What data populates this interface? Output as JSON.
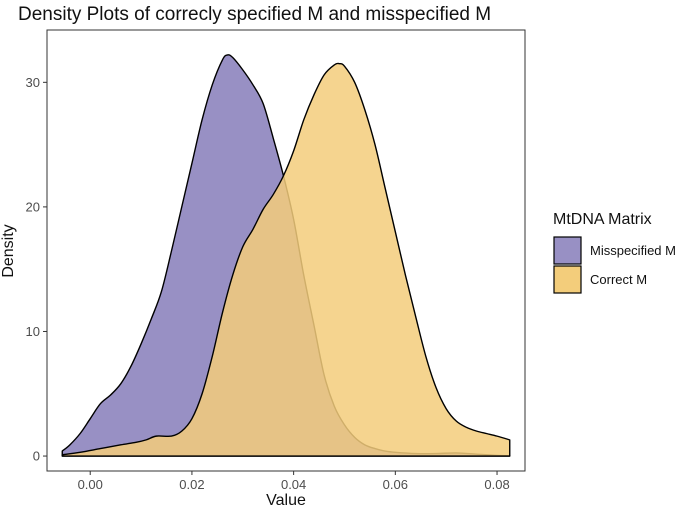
{
  "chart_data": {
    "type": "area",
    "title": "Density Plots of correcly specified M and misspecified M",
    "xlabel": "Value",
    "ylabel": "Density",
    "xlim": [
      -0.0085,
      0.0855
    ],
    "ylim": [
      -1.2,
      34.2
    ],
    "x_ticks": [
      0.0,
      0.02,
      0.04,
      0.06,
      0.08
    ],
    "x_tick_labels": [
      "0.00",
      "0.02",
      "0.04",
      "0.06",
      "0.08"
    ],
    "y_ticks": [
      0,
      10,
      20,
      30
    ],
    "y_tick_labels": [
      "0",
      "10",
      "20",
      "30"
    ],
    "grid": false,
    "legend": {
      "title": "MtDNA Matrix",
      "placement": "right",
      "entries": [
        "Misspecified M",
        "Correct M"
      ]
    },
    "series": [
      {
        "name": "Misspecified M",
        "color": "#9890c4",
        "points": [
          [
            -0.0055,
            0.4
          ],
          [
            -0.004,
            0.9
          ],
          [
            -0.002,
            1.8
          ],
          [
            0.0,
            3.0
          ],
          [
            0.002,
            4.2
          ],
          [
            0.004,
            4.9
          ],
          [
            0.006,
            5.8
          ],
          [
            0.008,
            7.2
          ],
          [
            0.01,
            9.0
          ],
          [
            0.012,
            11.0
          ],
          [
            0.014,
            13.2
          ],
          [
            0.016,
            16.5
          ],
          [
            0.018,
            20.0
          ],
          [
            0.02,
            23.5
          ],
          [
            0.022,
            27.0
          ],
          [
            0.024,
            29.8
          ],
          [
            0.026,
            31.8
          ],
          [
            0.027,
            32.2
          ],
          [
            0.028,
            32.0
          ],
          [
            0.03,
            31.0
          ],
          [
            0.032,
            29.8
          ],
          [
            0.034,
            28.3
          ],
          [
            0.036,
            25.5
          ],
          [
            0.038,
            22.5
          ],
          [
            0.04,
            19.0
          ],
          [
            0.042,
            14.5
          ],
          [
            0.044,
            10.5
          ],
          [
            0.046,
            6.5
          ],
          [
            0.048,
            4.0
          ],
          [
            0.05,
            2.5
          ],
          [
            0.052,
            1.5
          ],
          [
            0.054,
            0.9
          ],
          [
            0.056,
            0.6
          ],
          [
            0.058,
            0.4
          ],
          [
            0.06,
            0.3
          ],
          [
            0.064,
            0.2
          ],
          [
            0.068,
            0.2
          ],
          [
            0.072,
            0.25
          ],
          [
            0.076,
            0.15
          ],
          [
            0.08,
            0.05
          ],
          [
            0.0825,
            0.02
          ]
        ]
      },
      {
        "name": "Correct M",
        "color": "#f3cd7b",
        "points": [
          [
            -0.0055,
            0.1
          ],
          [
            -0.002,
            0.3
          ],
          [
            0.002,
            0.6
          ],
          [
            0.006,
            0.9
          ],
          [
            0.009,
            1.1
          ],
          [
            0.011,
            1.3
          ],
          [
            0.013,
            1.6
          ],
          [
            0.016,
            1.6
          ],
          [
            0.018,
            2.0
          ],
          [
            0.02,
            3.0
          ],
          [
            0.022,
            5.0
          ],
          [
            0.024,
            8.0
          ],
          [
            0.026,
            11.5
          ],
          [
            0.028,
            14.5
          ],
          [
            0.03,
            16.8
          ],
          [
            0.032,
            18.2
          ],
          [
            0.034,
            19.8
          ],
          [
            0.036,
            21.0
          ],
          [
            0.038,
            22.5
          ],
          [
            0.04,
            24.5
          ],
          [
            0.042,
            27.0
          ],
          [
            0.044,
            29.0
          ],
          [
            0.046,
            30.6
          ],
          [
            0.048,
            31.4
          ],
          [
            0.049,
            31.5
          ],
          [
            0.05,
            31.3
          ],
          [
            0.052,
            30.0
          ],
          [
            0.054,
            27.8
          ],
          [
            0.056,
            25.0
          ],
          [
            0.058,
            21.5
          ],
          [
            0.06,
            18.0
          ],
          [
            0.062,
            14.5
          ],
          [
            0.064,
            11.2
          ],
          [
            0.066,
            8.0
          ],
          [
            0.068,
            5.5
          ],
          [
            0.07,
            3.8
          ],
          [
            0.072,
            2.8
          ],
          [
            0.074,
            2.3
          ],
          [
            0.076,
            2.0
          ],
          [
            0.078,
            1.8
          ],
          [
            0.08,
            1.6
          ],
          [
            0.0825,
            1.3
          ]
        ]
      }
    ]
  }
}
